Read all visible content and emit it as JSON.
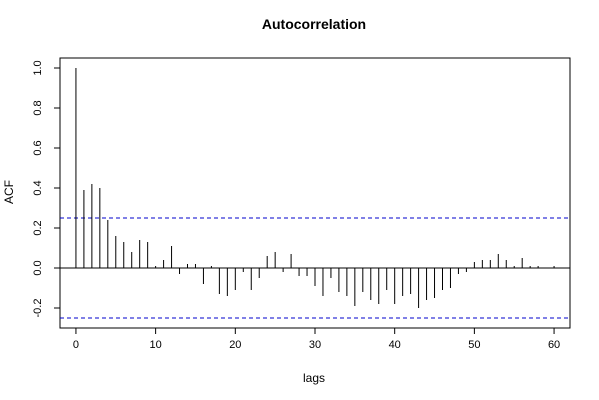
{
  "chart_data": {
    "type": "bar",
    "title": "Autocorrelation",
    "xlabel": "lags",
    "ylabel": "ACF",
    "xlim": [
      -2,
      62
    ],
    "ylim": [
      -0.3,
      1.05
    ],
    "xticks": [
      0,
      10,
      20,
      30,
      40,
      50,
      60
    ],
    "yticks": [
      -0.2,
      0.0,
      0.2,
      0.4,
      0.6,
      0.8,
      1.0
    ],
    "ytick_labels": [
      "-0.2",
      "0.0",
      "0.2",
      "0.4",
      "0.6",
      "0.8",
      "1.0"
    ],
    "zero_line": 0.0,
    "confidence_band": [
      -0.25,
      0.25
    ],
    "band_color": "#0000cc",
    "x": [
      0,
      1,
      2,
      3,
      4,
      5,
      6,
      7,
      8,
      9,
      10,
      11,
      12,
      13,
      14,
      15,
      16,
      17,
      18,
      19,
      20,
      21,
      22,
      23,
      24,
      25,
      26,
      27,
      28,
      29,
      30,
      31,
      32,
      33,
      34,
      35,
      36,
      37,
      38,
      39,
      40,
      41,
      42,
      43,
      44,
      45,
      46,
      47,
      48,
      49,
      50,
      51,
      52,
      53,
      54,
      55,
      56,
      57,
      58,
      59,
      60
    ],
    "values": [
      1.0,
      0.39,
      0.42,
      0.4,
      0.24,
      0.16,
      0.13,
      0.08,
      0.14,
      0.13,
      0.01,
      0.04,
      0.11,
      -0.03,
      0.02,
      0.02,
      -0.08,
      0.01,
      -0.13,
      -0.14,
      -0.11,
      -0.02,
      -0.11,
      -0.05,
      0.06,
      0.08,
      -0.02,
      0.07,
      -0.04,
      -0.04,
      -0.09,
      -0.14,
      -0.05,
      -0.12,
      -0.14,
      -0.19,
      -0.12,
      -0.16,
      -0.18,
      -0.11,
      -0.18,
      -0.14,
      -0.13,
      -0.2,
      -0.16,
      -0.15,
      -0.11,
      -0.1,
      -0.03,
      -0.02,
      0.03,
      0.04,
      0.04,
      0.07,
      0.04,
      0.01,
      0.05,
      0.01,
      0.01,
      0.0,
      0.01
    ]
  }
}
